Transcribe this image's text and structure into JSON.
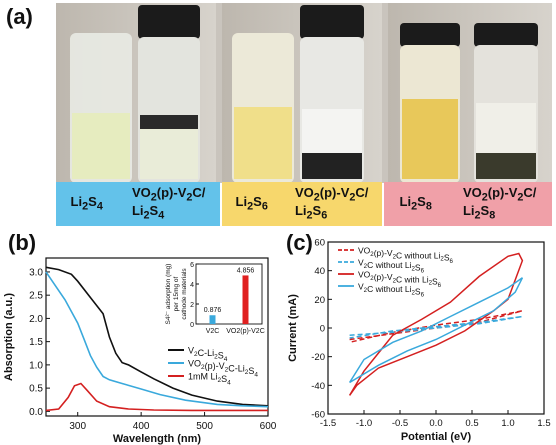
{
  "panels": {
    "a": {
      "label": "(a)",
      "groups": [
        {
          "left_sample": "Li2S4",
          "left_base": "Li",
          "left_sub": "2",
          "left_rest": "S",
          "left_sub2": "4",
          "right_line1": "VO2(p)-V2C/",
          "right_line2": "Li2S4",
          "color": "#63c2ea"
        },
        {
          "left_sample": "Li2S6",
          "left_base": "Li",
          "left_sub": "2",
          "left_rest": "S",
          "left_sub2": "6",
          "right_line1": "VO2(p)-V2C/",
          "right_line2": "Li2S6",
          "color": "#f7d76c"
        },
        {
          "left_sample": "Li2S8",
          "left_base": "Li",
          "left_sub": "2",
          "left_rest": "S",
          "left_sub2": "8",
          "right_line1": "VO2(p)-V2C/",
          "right_line2": "Li2S8",
          "color": "#f0a0a8"
        }
      ]
    },
    "b": {
      "label": "(b)"
    },
    "c": {
      "label": "(c)"
    }
  },
  "chart_data": [
    {
      "type": "line",
      "panel": "b",
      "xlabel": "Wavelength (nm)",
      "ylabel": "Absorption (a.u.)",
      "xlim": [
        250,
        600
      ],
      "ylim": [
        -0.1,
        3.3
      ],
      "xticks": [
        300,
        400,
        500,
        600
      ],
      "yticks": [
        0.0,
        0.5,
        1.0,
        1.5,
        2.0,
        2.5,
        3.0
      ],
      "grid": false,
      "legend": "bottom-right",
      "series": [
        {
          "name": "V2C-Li2S4",
          "color": "#111111",
          "x": [
            250,
            270,
            290,
            300,
            320,
            340,
            350,
            360,
            370,
            380,
            400,
            420,
            450,
            480,
            520,
            560,
            600
          ],
          "y": [
            3.1,
            3.05,
            2.95,
            2.8,
            2.45,
            2.1,
            1.6,
            1.25,
            1.05,
            1.0,
            0.85,
            0.7,
            0.5,
            0.35,
            0.22,
            0.15,
            0.12
          ]
        },
        {
          "name": "VO2(p)-V2C-Li2S4",
          "color": "#3aa9dc",
          "x": [
            250,
            260,
            280,
            300,
            310,
            320,
            330,
            340,
            350,
            370,
            400,
            430,
            470,
            520,
            560,
            600
          ],
          "y": [
            3.0,
            2.8,
            2.4,
            1.9,
            1.55,
            1.2,
            0.95,
            0.75,
            0.68,
            0.6,
            0.48,
            0.36,
            0.24,
            0.15,
            0.12,
            0.1
          ]
        },
        {
          "name": "1mM Li2S4",
          "color": "#d42020",
          "x": [
            250,
            270,
            285,
            295,
            305,
            315,
            330,
            350,
            380,
            420,
            480,
            540,
            600
          ],
          "y": [
            0.02,
            0.05,
            0.3,
            0.55,
            0.6,
            0.45,
            0.22,
            0.1,
            0.05,
            0.03,
            0.02,
            0.02,
            0.02
          ]
        }
      ],
      "inset": {
        "type": "bar",
        "ylabel": "S4 2- adsorption (mg) per 15mg of cathode materials",
        "ylabel_line1": "S4²⁻ adsorption (mg)",
        "ylabel_line2": "per 15mg of",
        "ylabel_line3": "cathode materials",
        "categories": [
          "V2C",
          "VO2(p)-V2C"
        ],
        "values": [
          0.876,
          4.856
        ],
        "value_labels": [
          "0.876",
          "4.856"
        ],
        "colors": [
          "#3aa9dc",
          "#e02020"
        ],
        "ylim": [
          0,
          6
        ],
        "yticks": [
          0,
          2,
          4,
          6
        ]
      }
    },
    {
      "type": "line",
      "panel": "c",
      "xlabel": "Potential (eV)",
      "ylabel": "Current (mA)",
      "xlim": [
        -1.5,
        1.5
      ],
      "ylim": [
        -60,
        60
      ],
      "xticks": [
        -1.5,
        -1.0,
        -0.5,
        0.0,
        0.5,
        1.0,
        1.5
      ],
      "yticks": [
        -60,
        -40,
        -20,
        0,
        20,
        40,
        60
      ],
      "grid": false,
      "legend": "top-left",
      "series": [
        {
          "name": "VO2(p)-V2C without Li2S6",
          "color": "#d42020",
          "dash": true,
          "x": [
            -1.2,
            -0.6,
            0.0,
            0.6,
            1.2,
            0.6,
            0.0,
            -0.6,
            -1.2
          ],
          "y": [
            -8,
            -4,
            0,
            4,
            12,
            6,
            2,
            -3,
            -10
          ]
        },
        {
          "name": "V2C without Li2S6",
          "color": "#3aa9dc",
          "dash": true,
          "x": [
            -1.2,
            -0.6,
            0.0,
            0.6,
            1.2,
            0.6,
            0.0,
            -0.6,
            -1.2
          ],
          "y": [
            -5,
            -3,
            0,
            3,
            8,
            4,
            1,
            -2,
            -7
          ]
        },
        {
          "name": "VO2(p)-V2C with Li2S6",
          "color": "#d42020",
          "dash": false,
          "x": [
            -1.2,
            -1.1,
            -0.8,
            -0.4,
            0.0,
            0.4,
            0.8,
            1.0,
            1.2,
            1.15,
            1.0,
            0.6,
            0.2,
            -0.2,
            -0.6,
            -1.0,
            -1.2
          ],
          "y": [
            -47,
            -40,
            -28,
            -20,
            -12,
            -2,
            12,
            20,
            47,
            52,
            50,
            36,
            18,
            6,
            -5,
            -30,
            -47
          ]
        },
        {
          "name": "V2C without Li2S6",
          "color": "#3aa9dc",
          "dash": false,
          "x": [
            -1.2,
            -0.8,
            -0.4,
            0.0,
            0.4,
            0.8,
            1.1,
            1.2,
            1.0,
            0.6,
            0.2,
            -0.2,
            -0.6,
            -1.0,
            -1.2
          ],
          "y": [
            -38,
            -26,
            -16,
            -8,
            2,
            12,
            25,
            35,
            28,
            18,
            8,
            -2,
            -10,
            -22,
            -38
          ]
        }
      ]
    }
  ],
  "legend_b": [
    {
      "label_main": "V",
      "parts": [
        [
          "V",
          "n"
        ],
        [
          "2",
          "sub"
        ],
        [
          "C-Li",
          "n"
        ],
        [
          "2",
          "sub"
        ],
        [
          "S",
          "n"
        ],
        [
          "4",
          "sub"
        ]
      ],
      "color": "#111111"
    },
    {
      "label_main": "VO2",
      "parts": [
        [
          "VO",
          "n"
        ],
        [
          "2",
          "sub"
        ],
        [
          "(p)-V",
          "n"
        ],
        [
          "2",
          "sub"
        ],
        [
          "C-Li",
          "n"
        ],
        [
          "2",
          "sub"
        ],
        [
          "S",
          "n"
        ],
        [
          "4",
          "sub"
        ]
      ],
      "color": "#3aa9dc"
    },
    {
      "label_main": "1mM",
      "parts": [
        [
          "1mM Li",
          "n"
        ],
        [
          "2",
          "sub"
        ],
        [
          "S",
          "n"
        ],
        [
          "4",
          "sub"
        ]
      ],
      "color": "#d42020"
    }
  ],
  "legend_c": [
    {
      "parts": [
        [
          "VO",
          "n"
        ],
        [
          "2",
          "sub"
        ],
        [
          "(p)-V",
          "n"
        ],
        [
          "2",
          "sub"
        ],
        [
          "C without Li",
          "n"
        ],
        [
          "2",
          "sub"
        ],
        [
          "S",
          "n"
        ],
        [
          "6",
          "sub"
        ]
      ],
      "color": "#d42020",
      "dash": true
    },
    {
      "parts": [
        [
          "V",
          "n"
        ],
        [
          "2",
          "sub"
        ],
        [
          "C without Li",
          "n"
        ],
        [
          "2",
          "sub"
        ],
        [
          "S",
          "n"
        ],
        [
          "6",
          "sub"
        ]
      ],
      "color": "#3aa9dc",
      "dash": true
    },
    {
      "parts": [
        [
          "VO",
          "n"
        ],
        [
          "2",
          "sub"
        ],
        [
          "(p)-V",
          "n"
        ],
        [
          "2",
          "sub"
        ],
        [
          "C with Li",
          "n"
        ],
        [
          "2",
          "sub"
        ],
        [
          "S",
          "n"
        ],
        [
          "6",
          "sub"
        ]
      ],
      "color": "#d42020",
      "dash": false
    },
    {
      "parts": [
        [
          "V",
          "n"
        ],
        [
          "2",
          "sub"
        ],
        [
          "C without Li",
          "n"
        ],
        [
          "2",
          "sub"
        ],
        [
          "S",
          "n"
        ],
        [
          "6",
          "sub"
        ]
      ],
      "color": "#3aa9dc",
      "dash": false
    }
  ]
}
